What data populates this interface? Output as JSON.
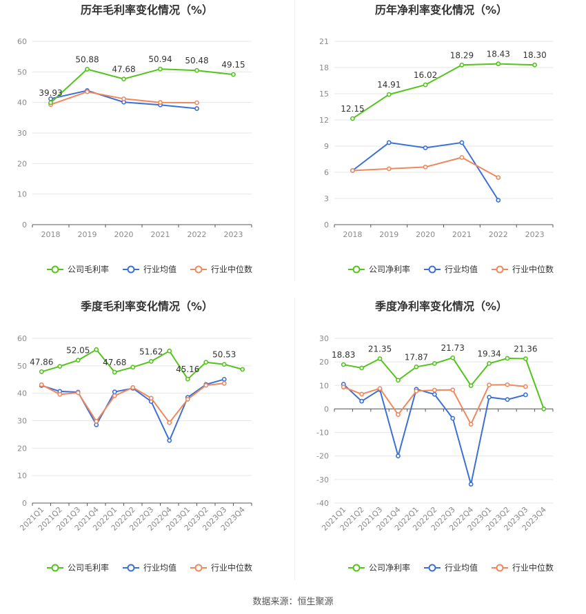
{
  "colors": {
    "company": "#52c41a",
    "industry_avg": "#3b6fd8",
    "industry_median": "#f0875d",
    "grid": "#e6e6e6",
    "axis_text": "#8a8a8a",
    "label_text": "#333333"
  },
  "source": "数据来源：恒生聚源",
  "chart_data": [
    {
      "id": "annual-gross",
      "type": "line",
      "title": "历年毛利率变化情况（%）",
      "categories": [
        "2018",
        "2019",
        "2020",
        "2021",
        "2022",
        "2023"
      ],
      "ylim": [
        0,
        60
      ],
      "yticks": [
        0,
        10,
        20,
        30,
        40,
        50,
        60
      ],
      "grid": true,
      "legend_position": "bottom",
      "series": [
        {
          "name": "公司毛利率",
          "key": "company",
          "values": [
            39.93,
            50.88,
            47.68,
            50.94,
            50.48,
            49.15
          ],
          "labels": [
            "39.93",
            "50.88",
            "47.68",
            "50.94",
            "50.48",
            "49.15"
          ]
        },
        {
          "name": "行业均值",
          "key": "industry_avg",
          "values": [
            41.2,
            43.9,
            40.1,
            39.2,
            38.0,
            null
          ]
        },
        {
          "name": "行业中位数",
          "key": "industry_median",
          "values": [
            39.3,
            43.5,
            41.2,
            40.0,
            39.9,
            null
          ]
        }
      ]
    },
    {
      "id": "annual-net",
      "type": "line",
      "title": "历年净利率变化情况（%）",
      "categories": [
        "2018",
        "2019",
        "2020",
        "2021",
        "2022",
        "2023"
      ],
      "ylim": [
        0,
        21
      ],
      "yticks": [
        0,
        3,
        6,
        9,
        12,
        15,
        18,
        21
      ],
      "grid": true,
      "legend_position": "bottom",
      "series": [
        {
          "name": "公司净利率",
          "key": "company",
          "values": [
            12.15,
            14.91,
            16.02,
            18.29,
            18.43,
            18.3
          ],
          "labels": [
            "12.15",
            "14.91",
            "16.02",
            "18.29",
            "18.43",
            "18.30"
          ]
        },
        {
          "name": "行业均值",
          "key": "industry_avg",
          "values": [
            6.2,
            9.4,
            8.8,
            9.4,
            2.8,
            null
          ]
        },
        {
          "name": "行业中位数",
          "key": "industry_median",
          "values": [
            6.2,
            6.4,
            6.6,
            7.7,
            5.4,
            null
          ]
        }
      ]
    },
    {
      "id": "quarterly-gross",
      "type": "line",
      "title": "季度毛利率变化情况（%）",
      "categories": [
        "2021Q1",
        "2021Q2",
        "2021Q3",
        "2021Q4",
        "2022Q1",
        "2022Q2",
        "2022Q3",
        "2022Q4",
        "2023Q1",
        "2023Q2",
        "2023Q3",
        "2023Q4"
      ],
      "ylim": [
        0,
        60
      ],
      "yticks": [
        0,
        10,
        20,
        30,
        40,
        50,
        60
      ],
      "grid": true,
      "legend_position": "bottom",
      "series": [
        {
          "name": "公司毛利率",
          "key": "company",
          "values": [
            47.86,
            49.8,
            52.05,
            55.9,
            47.68,
            49.5,
            51.62,
            55.4,
            45.16,
            51.3,
            50.53,
            48.7
          ],
          "labels": [
            "47.86",
            "",
            "52.05",
            "",
            "47.68",
            "",
            "51.62",
            "",
            "45.16",
            "",
            "50.53",
            ""
          ]
        },
        {
          "name": "行业均值",
          "key": "industry_avg",
          "values": [
            42.8,
            40.7,
            40.4,
            28.5,
            40.5,
            41.8,
            37.0,
            22.8,
            38.5,
            43.2,
            45.1,
            null
          ]
        },
        {
          "name": "行业中位数",
          "key": "industry_median",
          "values": [
            43.1,
            39.6,
            40.2,
            29.8,
            39.1,
            42.1,
            38.2,
            29.3,
            37.8,
            42.9,
            43.6,
            null
          ]
        }
      ]
    },
    {
      "id": "quarterly-net",
      "type": "line",
      "title": "季度净利率变化情况（%）",
      "categories": [
        "2021Q1",
        "2021Q2",
        "2021Q3",
        "2021Q4",
        "2022Q1",
        "2022Q2",
        "2022Q3",
        "2022Q4",
        "2023Q1",
        "2023Q2",
        "2023Q3",
        "2023Q4"
      ],
      "ylim": [
        -40,
        30
      ],
      "yticks": [
        -40,
        -30,
        -20,
        -10,
        0,
        10,
        20,
        30
      ],
      "grid": true,
      "legend_position": "bottom",
      "series": [
        {
          "name": "公司净利率",
          "key": "company",
          "values": [
            18.83,
            17.4,
            21.35,
            12.2,
            17.87,
            19.3,
            21.73,
            9.9,
            19.34,
            21.5,
            21.36,
            0.0
          ],
          "labels": [
            "18.83",
            "",
            "21.35",
            "",
            "17.87",
            "",
            "21.73",
            "",
            "19.34",
            "",
            "21.36",
            ""
          ]
        },
        {
          "name": "行业均值",
          "key": "industry_avg",
          "values": [
            10.5,
            3.3,
            8.2,
            -20.0,
            8.4,
            6.2,
            -4.0,
            -32.0,
            5.0,
            4.0,
            6.0,
            null
          ]
        },
        {
          "name": "行业中位数",
          "key": "industry_median",
          "values": [
            9.3,
            6.3,
            8.7,
            -2.4,
            7.6,
            8.0,
            8.1,
            -6.5,
            10.2,
            10.3,
            9.5,
            null
          ]
        }
      ]
    }
  ]
}
